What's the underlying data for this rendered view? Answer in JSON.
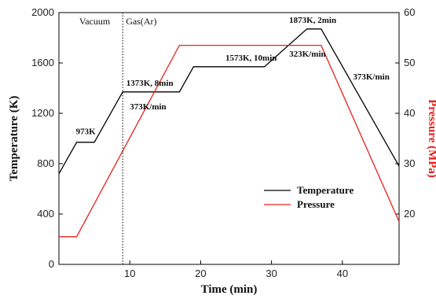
{
  "chart_data": {
    "type": "line",
    "xlabel": "Time (min)",
    "ylabel_left": "Temperature (K)",
    "ylabel_right": "Pressure (MPa)",
    "xlim": [
      0,
      48
    ],
    "ylim_left": [
      0,
      2000
    ],
    "ylim_right": [
      10,
      60
    ],
    "x_ticks": [
      10,
      20,
      30,
      40
    ],
    "y_ticks_left": [
      0,
      400,
      800,
      1200,
      1600,
      2000
    ],
    "y_ticks_right": [
      20,
      30,
      40,
      50,
      60
    ],
    "legend_position": "lower-right",
    "series": [
      {
        "name": "Temperature",
        "axis": "left",
        "color": "#000000",
        "x": [
          0,
          2.5,
          5,
          9,
          17,
          19,
          29,
          35,
          37,
          48
        ],
        "y": [
          720,
          970,
          970,
          1370,
          1370,
          1570,
          1570,
          1870,
          1870,
          780
        ]
      },
      {
        "name": "Pressure",
        "axis": "right",
        "color": "#e8201a",
        "x": [
          0,
          2.5,
          17,
          37,
          48
        ],
        "y": [
          15.5,
          15.5,
          53.5,
          53.5,
          18.5
        ]
      }
    ],
    "annotations": [
      {
        "text": "973K",
        "x": 2.4,
        "y": 1035
      },
      {
        "text": "373K/min",
        "x": 10,
        "y": 1230
      },
      {
        "text": "1373K, 8min",
        "x": 9.5,
        "y": 1420
      },
      {
        "text": "1573K, 10min",
        "x": 23.5,
        "y": 1620
      },
      {
        "text": "1873K, 2min",
        "x": 32.5,
        "y": 1920
      },
      {
        "text": "323K/min",
        "x": 32.5,
        "y": 1650
      },
      {
        "text": "373K/min",
        "x": 41.5,
        "y": 1470
      }
    ],
    "divider": {
      "x": 9,
      "left_label": "Vacuum",
      "right_label": "Gas(Ar)"
    }
  }
}
